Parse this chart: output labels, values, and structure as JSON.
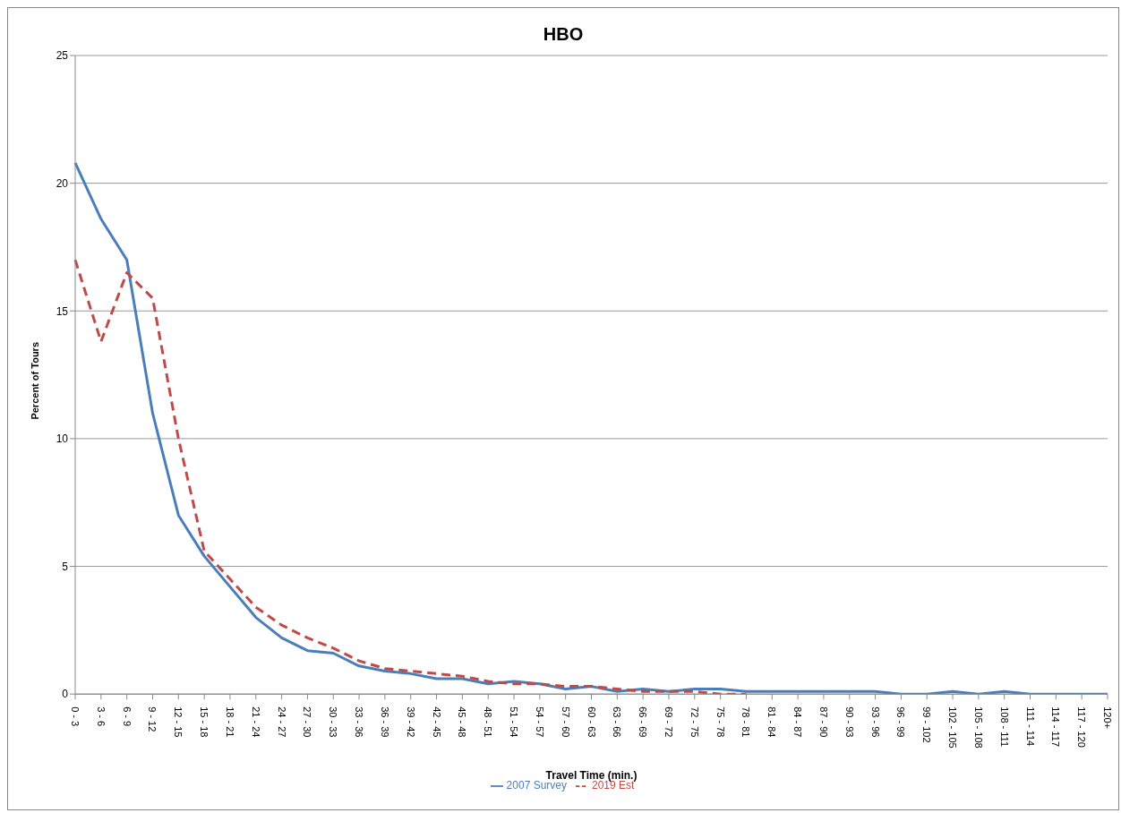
{
  "chart_data": {
    "type": "line",
    "title": "HBO",
    "xlabel": "Travel Time (min.)",
    "ylabel": "Percent of Tours",
    "categories": [
      "0 - 3",
      "3 - 6",
      "6 - 9",
      "9 - 12",
      "12 - 15",
      "15 - 18",
      "18 - 21",
      "21 - 24",
      "24 - 27",
      "27 - 30",
      "30 - 33",
      "33 - 36",
      "36 - 39",
      "39 - 42",
      "42 - 45",
      "45 - 48",
      "48 - 51",
      "51 - 54",
      "54 - 57",
      "57 - 60",
      "60 - 63",
      "63 - 66",
      "66 - 69",
      "69 - 72",
      "72 - 75",
      "75 - 78",
      "78 - 81",
      "81 - 84",
      "84 - 87",
      "87 - 90",
      "90 - 93",
      "93 - 96",
      "96 - 99",
      "99 - 102",
      "102 - 105",
      "105 - 108",
      "108 - 111",
      "111 - 114",
      "114 - 117",
      "117 - 120",
      "120+"
    ],
    "series": [
      {
        "name": "2007 Survey",
        "color": "#4a7ebb",
        "line_style": "solid",
        "values": [
          20.8,
          18.6,
          17.0,
          11.0,
          7.0,
          5.4,
          4.2,
          3.0,
          2.2,
          1.7,
          1.6,
          1.1,
          0.9,
          0.8,
          0.6,
          0.6,
          0.4,
          0.5,
          0.4,
          0.2,
          0.3,
          0.1,
          0.2,
          0.1,
          0.2,
          0.2,
          0.1,
          0.1,
          0.1,
          0.1,
          0.1,
          0.1,
          0,
          0,
          0.1,
          0,
          0.1,
          0,
          0,
          0,
          0
        ]
      },
      {
        "name": "2019 Est",
        "color": "#be4b48",
        "line_style": "dashed",
        "values": [
          17.0,
          13.8,
          16.5,
          15.5,
          10.0,
          5.6,
          4.5,
          3.4,
          2.7,
          2.2,
          1.8,
          1.3,
          1.0,
          0.9,
          0.8,
          0.7,
          0.5,
          0.4,
          0.4,
          0.3,
          0.3,
          0.2,
          0.1,
          0.1,
          0.1,
          0,
          0,
          null,
          null,
          null,
          null,
          null,
          null,
          null,
          null,
          null,
          null,
          null,
          null,
          null,
          null
        ]
      }
    ],
    "ylim": [
      0,
      25
    ],
    "yticks": [
      0,
      5,
      10,
      15,
      20,
      25
    ],
    "grid": "y",
    "legend": "bottom",
    "marker": "none"
  }
}
